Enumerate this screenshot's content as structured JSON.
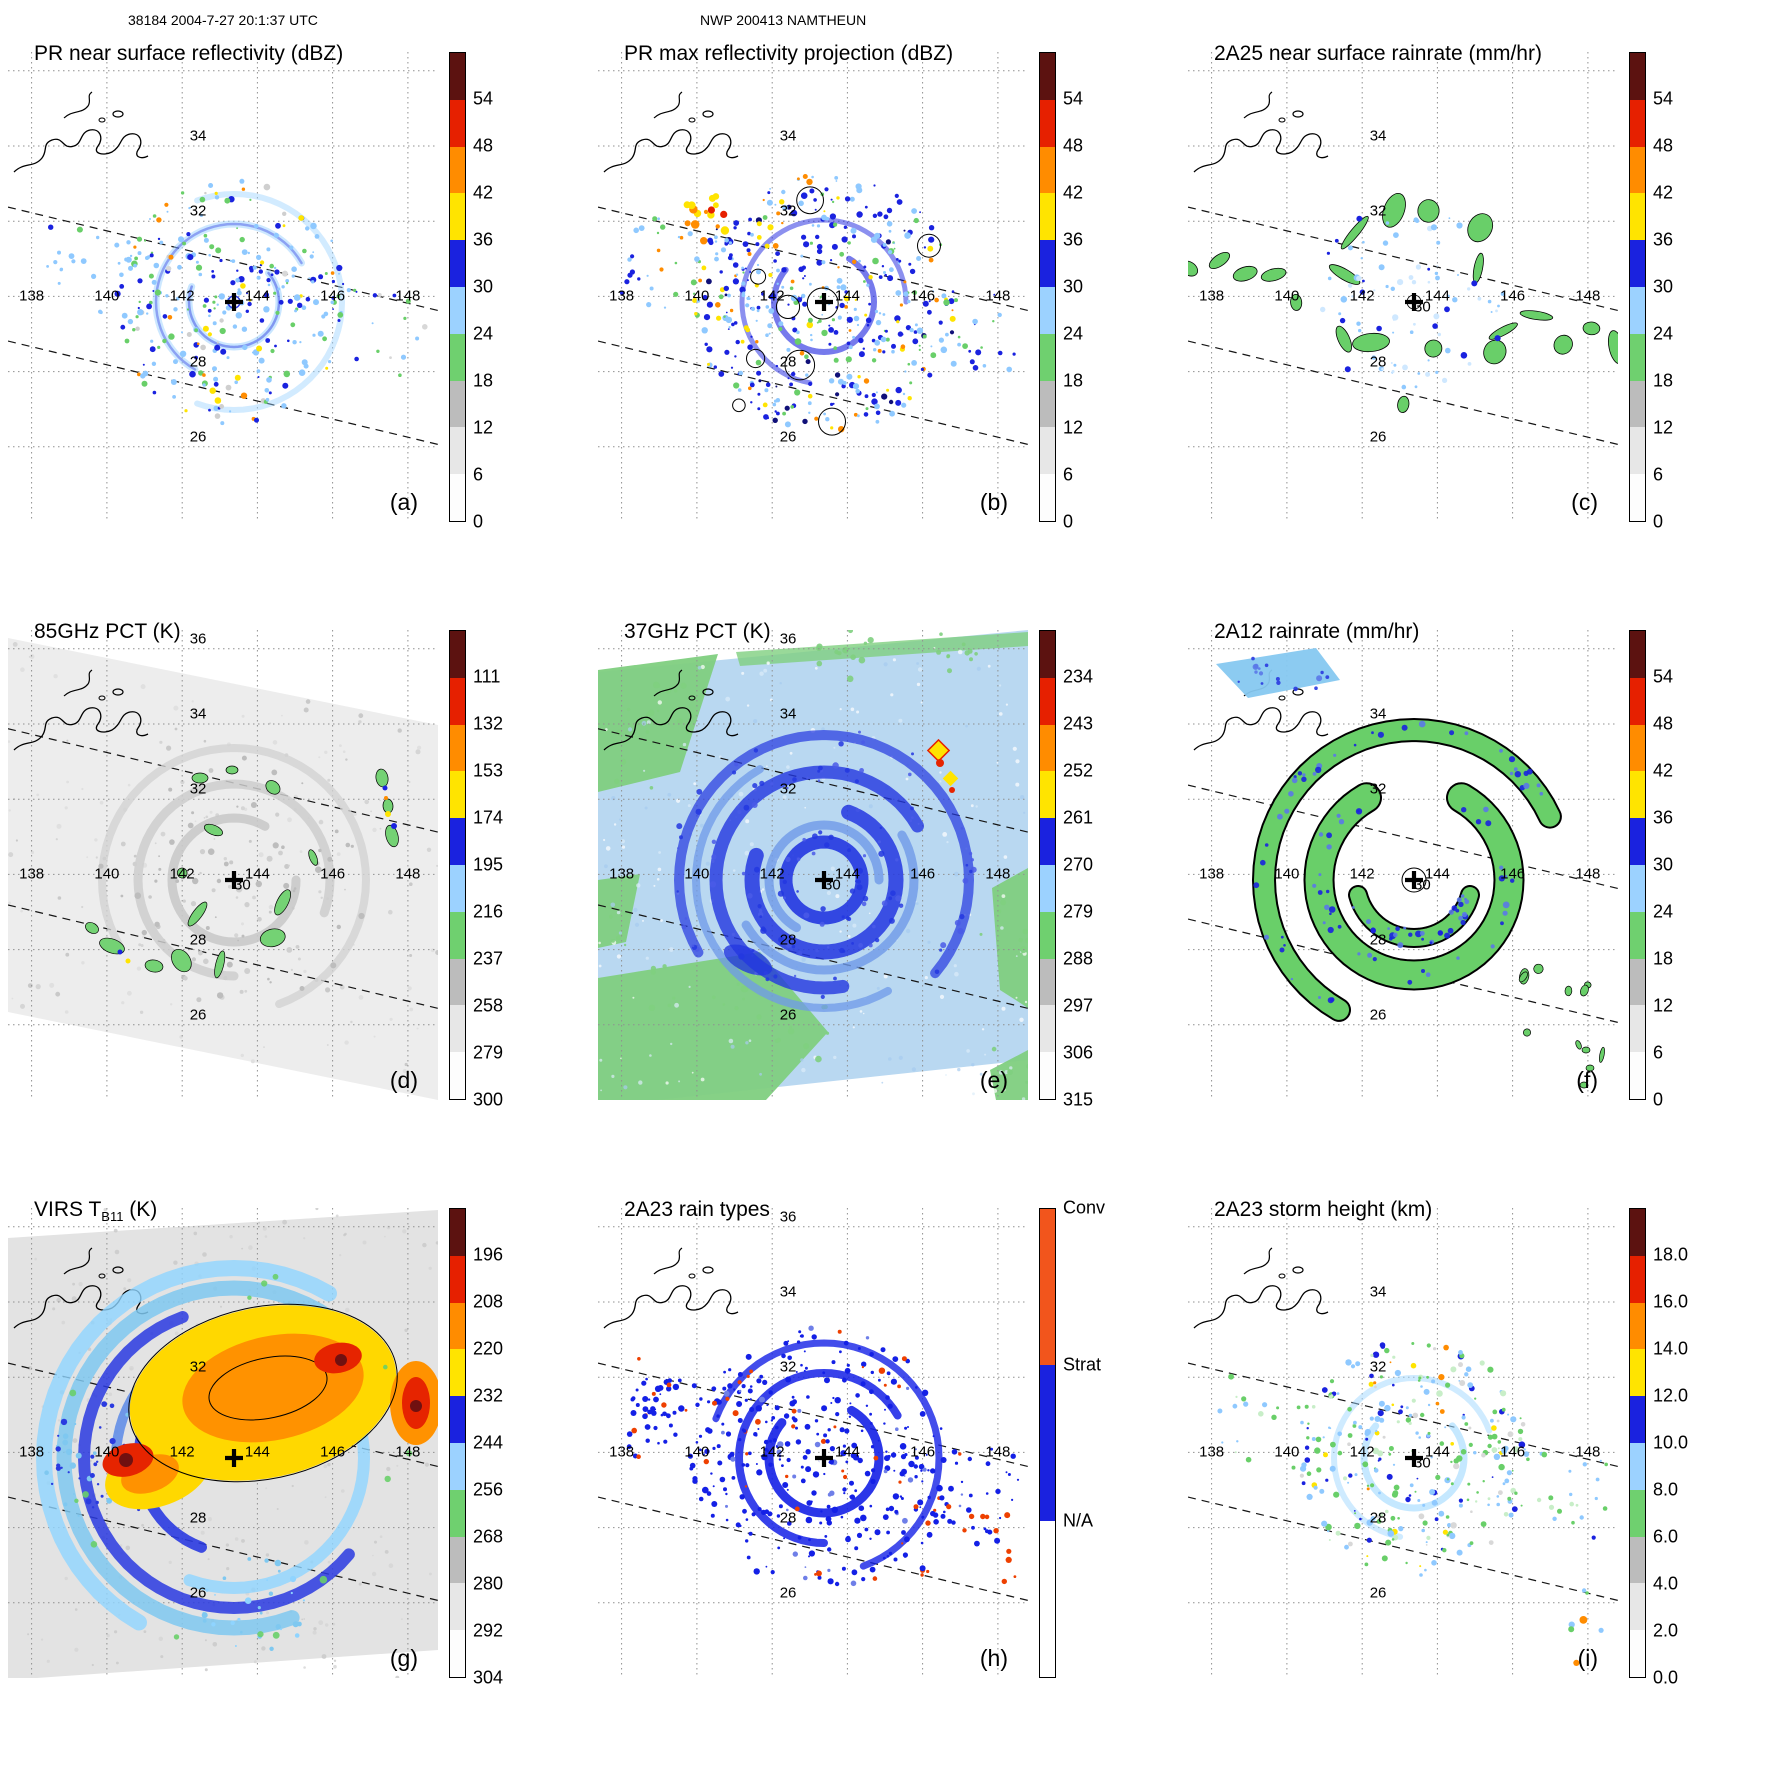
{
  "header": {
    "left": "38184 2004-7-27 20:1:37 UTC",
    "center": "NWP 200413 NAMTHEUN"
  },
  "colorbar_colors_bottom_to_top": [
    "#fdfdfd",
    "#e7e7e7",
    "#bcbcbc",
    "#6fd06f",
    "#9cd2ff",
    "#1a22df",
    "#ffe400",
    "#ff8c00",
    "#e62000",
    "#5c1210"
  ],
  "map": {
    "lon_labels": [
      "138",
      "140",
      "142",
      "144",
      "146",
      "148"
    ]
  },
  "panels": [
    {
      "letter": "(a)",
      "title": "PR near surface reflectivity (dBZ)",
      "title_sub": "",
      "title_tail": "",
      "lat_labels": [
        "34",
        "32",
        "28",
        "26"
      ],
      "colorbar": {
        "ticks": [
          "54",
          "48",
          "42",
          "36",
          "30",
          "24",
          "18",
          "12",
          "6",
          "0"
        ]
      }
    },
    {
      "letter": "(b)",
      "title": "PR max reflectivity projection (dBZ)",
      "title_sub": "",
      "title_tail": "",
      "lat_labels": [
        "34",
        "32",
        "28",
        "26"
      ],
      "colorbar": {
        "ticks": [
          "54",
          "48",
          "42",
          "36",
          "30",
          "24",
          "18",
          "12",
          "6",
          "0"
        ]
      }
    },
    {
      "letter": "(c)",
      "title": "2A25 near surface rainrate (mm/hr)",
      "title_sub": "",
      "title_tail": "",
      "lat_labels": [
        "34",
        "32",
        "30",
        "28",
        "26"
      ],
      "colorbar": {
        "ticks": [
          "54",
          "48",
          "42",
          "36",
          "30",
          "24",
          "18",
          "12",
          "6",
          "0"
        ]
      }
    },
    {
      "letter": "(d)",
      "title": "85GHz PCT (K)",
      "title_sub": "",
      "title_tail": "",
      "lat_labels": [
        "36",
        "34",
        "32",
        "30",
        "28",
        "26"
      ],
      "colorbar": {
        "ticks": [
          "111",
          "132",
          "153",
          "174",
          "195",
          "216",
          "237",
          "258",
          "279",
          "300"
        ]
      }
    },
    {
      "letter": "(e)",
      "title": "37GHz PCT (K)",
      "title_sub": "",
      "title_tail": "",
      "lat_labels": [
        "36",
        "34",
        "32",
        "30",
        "28",
        "26"
      ],
      "colorbar": {
        "ticks": [
          "234",
          "243",
          "252",
          "261",
          "270",
          "279",
          "288",
          "297",
          "306",
          "315"
        ]
      }
    },
    {
      "letter": "(f)",
      "title": "2A12 rainrate (mm/hr)",
      "title_sub": "",
      "title_tail": "",
      "lat_labels": [
        "34",
        "32",
        "30",
        "28",
        "26"
      ],
      "colorbar": {
        "ticks": [
          "54",
          "48",
          "42",
          "36",
          "30",
          "24",
          "18",
          "12",
          "6",
          "0"
        ]
      }
    },
    {
      "letter": "(g)",
      "title": "VIRS T",
      "title_sub": "B11",
      "title_tail": " (K)",
      "lat_labels": [
        "32",
        "28",
        "26"
      ],
      "colorbar": {
        "ticks": [
          "196",
          "208",
          "220",
          "232",
          "244",
          "256",
          "268",
          "280",
          "292",
          "304"
        ]
      }
    },
    {
      "letter": "(h)",
      "title": "2A23 rain types",
      "title_sub": "",
      "title_tail": "",
      "lat_labels": [
        "36",
        "34",
        "32",
        "28",
        "26"
      ],
      "colorbar": {
        "type": "categorical",
        "segments": [
          {
            "label": "Conv",
            "color": "#f2551c"
          },
          {
            "label": "Strat",
            "color": "#1a22df"
          },
          {
            "label": "N/A",
            "color": "#ffffff"
          }
        ]
      }
    },
    {
      "letter": "(i)",
      "title": "2A23 storm height (km)",
      "title_sub": "",
      "title_tail": "",
      "lat_labels": [
        "34",
        "32",
        "30",
        "28",
        "26"
      ],
      "colorbar": {
        "ticks": [
          "18.0",
          "16.0",
          "14.0",
          "12.0",
          "10.0",
          "8.0",
          "6.0",
          "4.0",
          "2.0",
          "0.0"
        ]
      }
    }
  ],
  "chart_data": {
    "type": "heatmap",
    "title": "NWP 200413 NAMTHEUN — orbit 38184, 2004-7-27 20:1:37 UTC",
    "layout": "3x3 grid of satellite swath maps of a tropical cyclone; dotted lat/lon graticule; dashed diagonal swath-edge lines; bold plus at storm center; coastline at top-left of each map",
    "map": {
      "lon_ticks": [
        138,
        140,
        142,
        144,
        146,
        148
      ],
      "lat_ticks": [
        26,
        28,
        30,
        32,
        34,
        36
      ],
      "storm_center_approx": {
        "lon": 143.3,
        "lat": 29.9
      }
    },
    "panels": [
      {
        "letter": "(a)",
        "title": "PR near surface reflectivity (dBZ)",
        "units": "dBZ",
        "colorbar_ticks": [
          54,
          48,
          42,
          36,
          30,
          24,
          18,
          12,
          6,
          0
        ]
      },
      {
        "letter": "(b)",
        "title": "PR max reflectivity projection (dBZ)",
        "units": "dBZ",
        "colorbar_ticks": [
          54,
          48,
          42,
          36,
          30,
          24,
          18,
          12,
          6,
          0
        ]
      },
      {
        "letter": "(c)",
        "title": "2A25 near surface rainrate (mm/hr)",
        "units": "mm/hr",
        "colorbar_ticks": [
          54,
          48,
          42,
          36,
          30,
          24,
          18,
          12,
          6,
          0
        ]
      },
      {
        "letter": "(d)",
        "title": "85GHz PCT (K)",
        "units": "K",
        "colorbar_ticks": [
          111,
          132,
          153,
          174,
          195,
          216,
          237,
          258,
          279,
          300
        ]
      },
      {
        "letter": "(e)",
        "title": "37GHz PCT (K)",
        "units": "K",
        "colorbar_ticks": [
          234,
          243,
          252,
          261,
          270,
          279,
          288,
          297,
          306,
          315
        ]
      },
      {
        "letter": "(f)",
        "title": "2A12 rainrate (mm/hr)",
        "units": "mm/hr",
        "colorbar_ticks": [
          54,
          48,
          42,
          36,
          30,
          24,
          18,
          12,
          6,
          0
        ]
      },
      {
        "letter": "(g)",
        "title": "VIRS T_B11 (K)",
        "units": "K",
        "colorbar_ticks": [
          196,
          208,
          220,
          232,
          244,
          256,
          268,
          280,
          292,
          304
        ]
      },
      {
        "letter": "(h)",
        "title": "2A23 rain types",
        "units": "category",
        "categories": [
          "Conv",
          "Strat",
          "N/A"
        ]
      },
      {
        "letter": "(i)",
        "title": "2A23 storm height (km)",
        "units": "km",
        "colorbar_ticks": [
          18.0,
          16.0,
          14.0,
          12.0,
          10.0,
          8.0,
          6.0,
          4.0,
          2.0,
          0.0
        ]
      }
    ]
  }
}
